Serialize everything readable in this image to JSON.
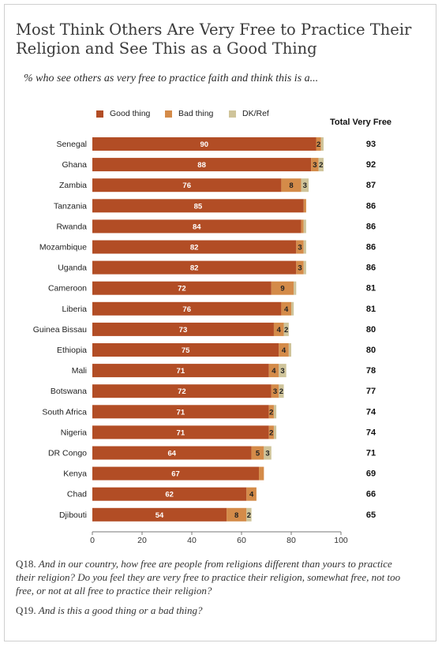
{
  "title": "Most Think Others Are Very Free to Practice Their Religion and See This as a Good Thing",
  "subtitle": "% who see others as very free to practice faith and think this is a...",
  "total_header": "Total Very Free",
  "notes": [
    {
      "q": "Q18.",
      "text": "And in our country, how free are people from religions different than yours to practice their religion?  Do you feel they are very free to practice their religion, somewhat free, not too free, or not at all free to practice their religion?"
    },
    {
      "q": "Q19.",
      "text": "And is this a good thing or a bad thing?"
    }
  ],
  "colors": {
    "good": "#b24d25",
    "bad": "#d48b49",
    "dk": "#cfc49a"
  },
  "chart_data": {
    "type": "bar",
    "orientation": "horizontal",
    "stacked": true,
    "categories": [
      "Senegal",
      "Ghana",
      "Zambia",
      "Tanzania",
      "Rwanda",
      "Mozambique",
      "Uganda",
      "Cameroon",
      "Liberia",
      "Guinea Bissau",
      "Ethiopia",
      "Mali",
      "Botswana",
      "South Africa",
      "Nigeria",
      "DR Congo",
      "Kenya",
      "Chad",
      "Djibouti"
    ],
    "series": [
      {
        "name": "Good thing",
        "values": [
          90,
          88,
          76,
          85,
          84,
          82,
          82,
          72,
          76,
          73,
          75,
          71,
          72,
          71,
          71,
          64,
          67,
          62,
          54
        ],
        "labels": [
          "90",
          "88",
          "76",
          "85",
          "84",
          "82",
          "82",
          "72",
          "76",
          "73",
          "75",
          "71",
          "72",
          "71",
          "71",
          "64",
          "67",
          "62",
          "54"
        ]
      },
      {
        "name": "Bad thing",
        "values": [
          2,
          3,
          8,
          1,
          1,
          3,
          3,
          9,
          4,
          4,
          4,
          4,
          3,
          2,
          2,
          5,
          2,
          4,
          8
        ],
        "labels": [
          "2",
          "3",
          "8",
          "",
          "",
          "3",
          "3",
          "9",
          "4",
          "4",
          "4",
          "4",
          "3",
          "2",
          "2",
          "5",
          "",
          "4",
          "8"
        ]
      },
      {
        "name": "DK/Ref",
        "values": [
          1,
          2,
          3,
          0,
          1,
          1,
          1,
          1,
          1,
          2,
          1,
          3,
          2,
          1,
          1,
          3,
          0,
          0,
          2
        ],
        "labels": [
          "",
          "2",
          "3",
          "",
          "",
          "",
          "",
          "",
          "",
          "2",
          "",
          "3",
          "2",
          "",
          "",
          "3",
          "",
          "",
          "2"
        ]
      }
    ],
    "totals": [
      "93",
      "92",
      "87",
      "86",
      "86",
      "86",
      "86",
      "81",
      "81",
      "80",
      "80",
      "78",
      "77",
      "74",
      "74",
      "71",
      "69",
      "66",
      "65"
    ],
    "xlim": [
      0,
      100
    ],
    "xticks": [
      "0",
      "20",
      "40",
      "60",
      "80",
      "100"
    ],
    "grid": false,
    "legend_position": "top"
  }
}
